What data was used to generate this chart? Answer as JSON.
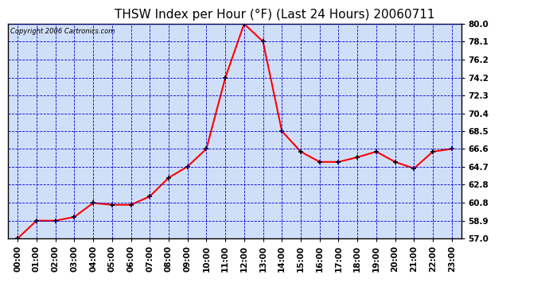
{
  "title": "THSW Index per Hour (°F) (Last 24 Hours) 20060711",
  "copyright": "Copyright 2006 Cartronics.com",
  "hours": [
    0,
    1,
    2,
    3,
    4,
    5,
    6,
    7,
    8,
    9,
    10,
    11,
    12,
    13,
    14,
    15,
    16,
    17,
    18,
    19,
    20,
    21,
    22,
    23
  ],
  "values": [
    57.0,
    58.9,
    58.9,
    59.3,
    60.8,
    60.6,
    60.6,
    61.5,
    63.5,
    64.7,
    66.6,
    74.2,
    80.0,
    78.1,
    68.5,
    66.3,
    65.2,
    65.2,
    65.7,
    66.3,
    65.2,
    64.5,
    66.3,
    66.6
  ],
  "yticks": [
    57.0,
    58.9,
    60.8,
    62.8,
    64.7,
    66.6,
    68.5,
    70.4,
    72.3,
    74.2,
    76.2,
    78.1,
    80.0
  ],
  "ylim": [
    57.0,
    80.0
  ],
  "xlim": [
    -0.5,
    23.5
  ],
  "bg_color": "#d0dff8",
  "line_color": "red",
  "grid_color": "#0000cc",
  "title_color": "black",
  "border_color": "black",
  "text_color": "black",
  "fig_bg": "white",
  "title_fontsize": 11,
  "tick_fontsize": 7.5,
  "copyright_fontsize": 6
}
